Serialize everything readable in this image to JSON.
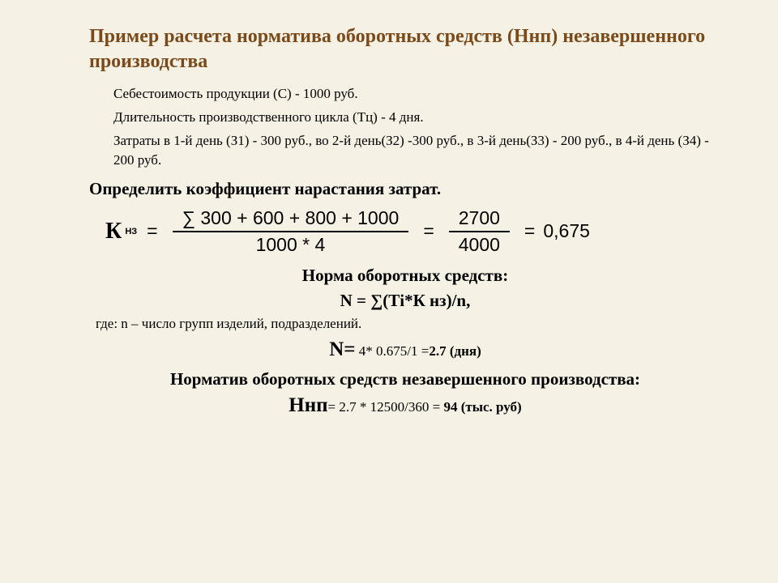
{
  "title": "Пример расчета норматива оборотных средств (Ннп) незавершенного производства",
  "given": {
    "line1": "Себестоимость продукции (С) - 1000 руб.",
    "line2": "Длительность производственного цикла (Тц) - 4 дня.",
    "line3": "Затраты в 1-й день (З1) - 300 руб., во 2-й день(З2) -300 руб., в 3-й день(З3) - 200 руб., в 4-й день (З4) - 200 руб."
  },
  "task": "Определить коэффициент нарастания затрат.",
  "formula": {
    "symbol": "К",
    "sub": "НЗ",
    "numerator1": "∑ 300 + 600 + 800 + 1000",
    "denominator1": "1000 * 4",
    "numerator2": "2700",
    "denominator2": "4000",
    "result": "0,675"
  },
  "norma_heading": "Норма  оборотных средств:",
  "norma_formula": "N = ∑(Тi*К нз)/n,",
  "norma_note": "где: n – число групп изделий, подразделений.",
  "n_calc": {
    "big": "N=",
    "body": " 4* 0.675/1 =",
    "res": "2.7 (дня)"
  },
  "normativ_heading": "Норматив оборотных средств незавершенного производства:",
  "nnp": {
    "big": "Ннп",
    "body": "= 2.7 * 12500/360 = ",
    "res": "94 (тыс. руб)"
  },
  "style": {
    "background": "#f5f1e5",
    "title_color": "#7a4a1a",
    "text_color": "#000000",
    "title_fontsize": 24,
    "body_fontsize": 17,
    "heading_fontsize": 21,
    "formula_fontsize": 23
  }
}
